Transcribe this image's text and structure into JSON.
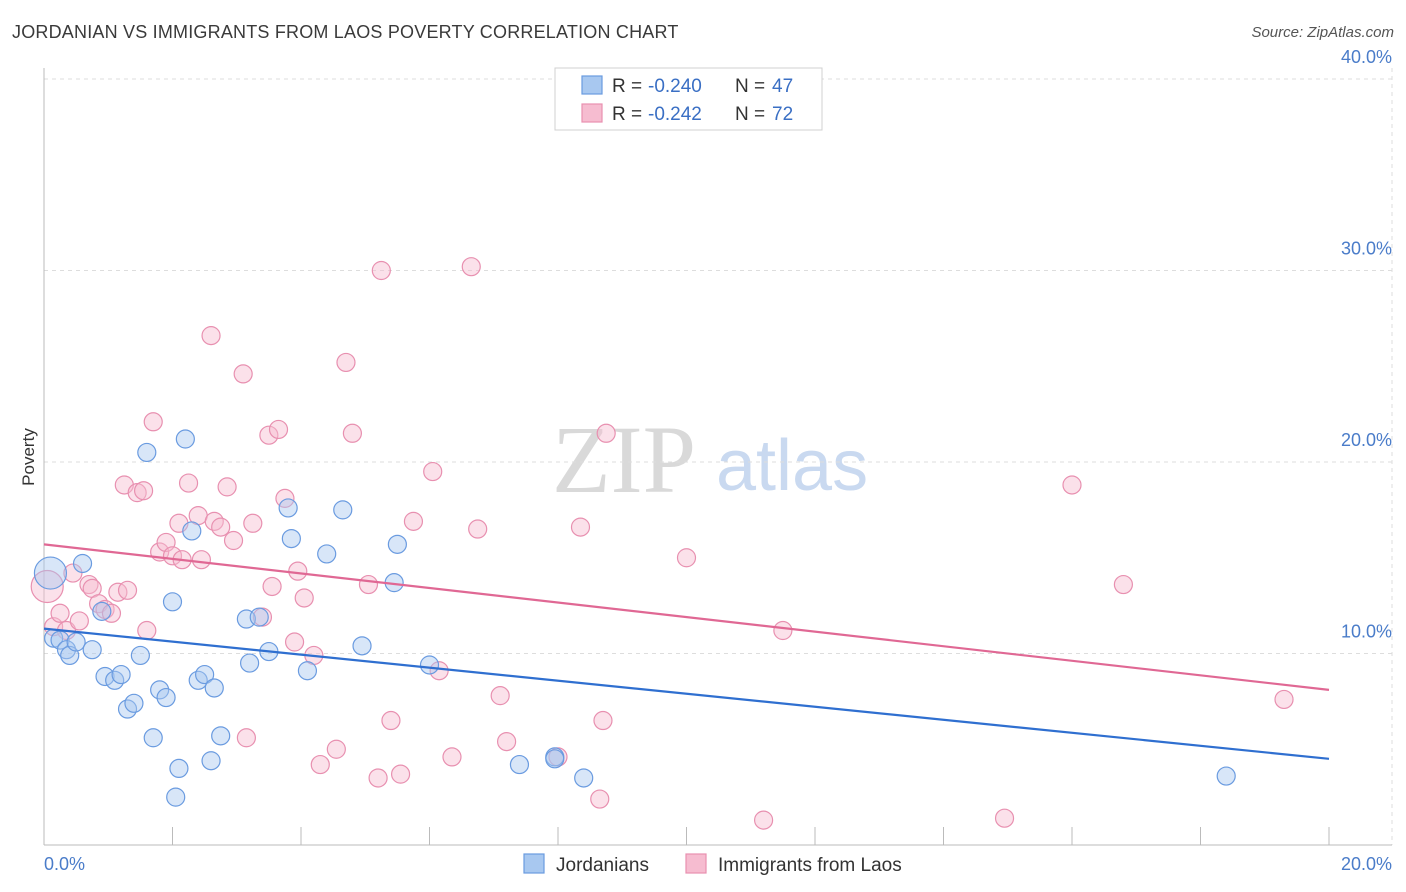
{
  "title": "JORDANIAN VS IMMIGRANTS FROM LAOS POVERTY CORRELATION CHART",
  "source": "Source: ZipAtlas.com",
  "watermark": {
    "zip": "ZIP",
    "atlas": "atlas"
  },
  "colors": {
    "blue_fill": "#a8c8f0",
    "blue_stroke": "#6a9be0",
    "blue_line": "#2f6fd0",
    "pink_fill": "#f6bcd0",
    "pink_stroke": "#e890b0",
    "pink_line": "#e06894",
    "grid": "#dddddd",
    "tick_text": "#4a7cc9"
  },
  "legend_top": {
    "rows": [
      {
        "r_label": "R = ",
        "r_value": "-0.240",
        "n_label": "N = ",
        "n_value": "47"
      },
      {
        "r_label": "R = ",
        "r_value": "-0.242",
        "n_label": "N = ",
        "n_value": "72"
      }
    ]
  },
  "legend_bottom": [
    "Jordanians",
    "Immigrants from Laos"
  ],
  "chart_data": {
    "type": "scatter",
    "title": "JORDANIAN VS IMMIGRANTS FROM LAOS POVERTY CORRELATION CHART",
    "xlabel": "",
    "ylabel": "Poverty",
    "xlim": [
      0,
      20
    ],
    "ylim": [
      0,
      40
    ],
    "x_tick_labels": [
      "0.0%",
      "20.0%"
    ],
    "y_ticks": [
      10,
      20,
      30,
      40
    ],
    "y_tick_labels": [
      "10.0%",
      "20.0%",
      "30.0%",
      "40.0%"
    ],
    "grid": true,
    "series": [
      {
        "name": "Jordanians",
        "R": -0.24,
        "N": 47,
        "trend": {
          "x": [
            0,
            20
          ],
          "y": [
            11.3,
            4.5
          ]
        },
        "points": [
          [
            0.1,
            14.2
          ],
          [
            0.15,
            10.8
          ],
          [
            0.25,
            10.7
          ],
          [
            0.35,
            10.2
          ],
          [
            0.4,
            9.9
          ],
          [
            0.5,
            10.6
          ],
          [
            0.6,
            14.7
          ],
          [
            0.75,
            10.2
          ],
          [
            0.9,
            12.2
          ],
          [
            0.95,
            8.8
          ],
          [
            1.1,
            8.6
          ],
          [
            1.2,
            8.9
          ],
          [
            1.3,
            7.1
          ],
          [
            1.4,
            7.4
          ],
          [
            1.5,
            9.9
          ],
          [
            1.6,
            20.5
          ],
          [
            1.7,
            5.6
          ],
          [
            1.8,
            8.1
          ],
          [
            1.9,
            7.7
          ],
          [
            2.0,
            12.7
          ],
          [
            2.1,
            4.0
          ],
          [
            2.05,
            2.5
          ],
          [
            2.2,
            21.2
          ],
          [
            2.3,
            16.4
          ],
          [
            2.4,
            8.6
          ],
          [
            2.5,
            8.9
          ],
          [
            2.6,
            4.4
          ],
          [
            2.65,
            8.2
          ],
          [
            2.75,
            5.7
          ],
          [
            3.15,
            11.8
          ],
          [
            3.2,
            9.5
          ],
          [
            3.35,
            11.9
          ],
          [
            3.5,
            10.1
          ],
          [
            3.8,
            17.6
          ],
          [
            3.85,
            16.0
          ],
          [
            4.1,
            9.1
          ],
          [
            4.4,
            15.2
          ],
          [
            4.65,
            17.5
          ],
          [
            4.95,
            10.4
          ],
          [
            5.5,
            15.7
          ],
          [
            5.45,
            13.7
          ],
          [
            6.0,
            9.4
          ],
          [
            7.4,
            4.2
          ],
          [
            7.95,
            4.6
          ],
          [
            8.4,
            3.5
          ],
          [
            18.4,
            3.6
          ],
          [
            7.95,
            4.5
          ]
        ]
      },
      {
        "name": "Immigrants from Laos",
        "R": -0.242,
        "N": 72,
        "trend": {
          "x": [
            0,
            20
          ],
          "y": [
            15.7,
            8.1
          ]
        },
        "points": [
          [
            0.05,
            13.5
          ],
          [
            0.15,
            11.4
          ],
          [
            0.25,
            12.1
          ],
          [
            0.35,
            11.2
          ],
          [
            0.45,
            14.2
          ],
          [
            0.55,
            11.7
          ],
          [
            0.7,
            13.6
          ],
          [
            0.75,
            13.4
          ],
          [
            0.85,
            12.6
          ],
          [
            0.95,
            12.3
          ],
          [
            1.05,
            12.1
          ],
          [
            1.15,
            13.2
          ],
          [
            1.25,
            18.8
          ],
          [
            1.3,
            13.3
          ],
          [
            1.45,
            18.4
          ],
          [
            1.55,
            18.5
          ],
          [
            1.6,
            11.2
          ],
          [
            1.7,
            22.1
          ],
          [
            1.8,
            15.3
          ],
          [
            1.9,
            15.8
          ],
          [
            2.0,
            15.1
          ],
          [
            2.1,
            16.8
          ],
          [
            2.15,
            14.9
          ],
          [
            2.25,
            18.9
          ],
          [
            2.4,
            17.2
          ],
          [
            2.45,
            14.9
          ],
          [
            2.6,
            26.6
          ],
          [
            2.65,
            16.9
          ],
          [
            2.75,
            16.6
          ],
          [
            2.85,
            18.7
          ],
          [
            2.95,
            15.9
          ],
          [
            3.1,
            24.6
          ],
          [
            3.15,
            5.6
          ],
          [
            3.25,
            16.8
          ],
          [
            3.4,
            11.9
          ],
          [
            3.5,
            21.4
          ],
          [
            3.55,
            13.5
          ],
          [
            3.65,
            21.7
          ],
          [
            3.75,
            18.1
          ],
          [
            3.9,
            10.6
          ],
          [
            3.95,
            14.3
          ],
          [
            4.05,
            12.9
          ],
          [
            4.2,
            9.9
          ],
          [
            4.3,
            4.2
          ],
          [
            4.55,
            5.0
          ],
          [
            4.7,
            25.2
          ],
          [
            4.8,
            21.5
          ],
          [
            5.05,
            13.6
          ],
          [
            5.2,
            3.5
          ],
          [
            5.25,
            30.0
          ],
          [
            5.4,
            6.5
          ],
          [
            5.55,
            3.7
          ],
          [
            5.75,
            16.9
          ],
          [
            6.05,
            19.5
          ],
          [
            6.15,
            9.1
          ],
          [
            6.35,
            4.6
          ],
          [
            6.65,
            30.2
          ],
          [
            6.75,
            16.5
          ],
          [
            7.1,
            7.8
          ],
          [
            7.2,
            5.4
          ],
          [
            8.0,
            4.6
          ],
          [
            8.35,
            16.6
          ],
          [
            8.65,
            2.4
          ],
          [
            8.7,
            6.5
          ],
          [
            8.75,
            21.5
          ],
          [
            10.0,
            15.0
          ],
          [
            11.2,
            1.3
          ],
          [
            11.5,
            11.2
          ],
          [
            14.95,
            1.4
          ],
          [
            16.0,
            18.8
          ],
          [
            16.8,
            13.6
          ],
          [
            19.3,
            7.6
          ]
        ]
      }
    ]
  }
}
